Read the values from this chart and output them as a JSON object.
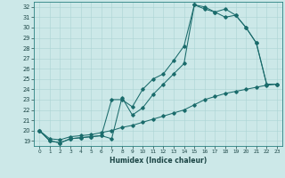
{
  "xlabel": "Humidex (Indice chaleur)",
  "bg_color": "#cce8e8",
  "line_color": "#1a6b6b",
  "grid_color": "#aad4d4",
  "xlim": [
    -0.5,
    23.5
  ],
  "ylim": [
    18.5,
    32.5
  ],
  "yticks": [
    19,
    20,
    21,
    22,
    23,
    24,
    25,
    26,
    27,
    28,
    29,
    30,
    31,
    32
  ],
  "xticks": [
    0,
    1,
    2,
    3,
    4,
    5,
    6,
    7,
    8,
    9,
    10,
    11,
    12,
    13,
    14,
    15,
    16,
    17,
    18,
    19,
    20,
    21,
    22,
    23
  ],
  "line1_x": [
    0,
    1,
    2,
    3,
    4,
    5,
    6,
    7,
    8,
    9,
    10,
    11,
    12,
    13,
    14,
    15,
    16,
    17,
    18,
    19,
    20,
    21,
    22,
    23
  ],
  "line1_y": [
    20.0,
    19.0,
    18.8,
    19.2,
    19.3,
    19.4,
    19.5,
    19.2,
    23.2,
    21.5,
    22.2,
    23.5,
    24.5,
    25.5,
    26.5,
    32.2,
    32.0,
    31.5,
    31.8,
    31.2,
    30.0,
    28.5,
    24.5,
    24.5
  ],
  "line2_x": [
    0,
    1,
    2,
    3,
    4,
    5,
    6,
    7,
    8,
    9,
    10,
    11,
    12,
    13,
    14,
    15,
    16,
    17,
    18,
    19,
    20,
    21,
    22,
    23
  ],
  "line2_y": [
    20.0,
    19.0,
    18.8,
    19.2,
    19.3,
    19.4,
    19.5,
    23.0,
    23.0,
    22.3,
    24.0,
    25.0,
    25.5,
    26.8,
    28.2,
    32.2,
    31.8,
    31.5,
    31.0,
    31.2,
    30.0,
    28.5,
    24.5,
    24.5
  ],
  "line3_x": [
    0,
    1,
    2,
    3,
    4,
    5,
    6,
    7,
    8,
    9,
    10,
    11,
    12,
    13,
    14,
    15,
    16,
    17,
    18,
    19,
    20,
    21,
    22,
    23
  ],
  "line3_y": [
    20.0,
    19.2,
    19.1,
    19.4,
    19.5,
    19.6,
    19.8,
    20.0,
    20.3,
    20.5,
    20.8,
    21.1,
    21.4,
    21.7,
    22.0,
    22.5,
    23.0,
    23.3,
    23.6,
    23.8,
    24.0,
    24.2,
    24.4,
    24.5
  ]
}
